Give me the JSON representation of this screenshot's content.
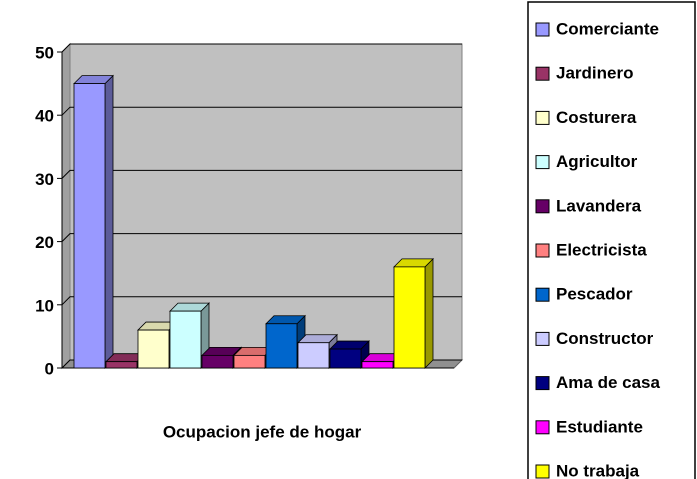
{
  "chart_data": {
    "type": "bar3d",
    "categories": [
      "Ocupacion jefe de hogar"
    ],
    "series": [
      {
        "name": "Comerciante",
        "color": "#9999ff",
        "values": [
          45
        ]
      },
      {
        "name": "Jardinero",
        "color": "#993366",
        "values": [
          1
        ]
      },
      {
        "name": "Costurera",
        "color": "#ffffcc",
        "values": [
          6
        ]
      },
      {
        "name": "Agricultor",
        "color": "#ccffff",
        "values": [
          9
        ]
      },
      {
        "name": "Lavandera",
        "color": "#660066",
        "values": [
          2
        ]
      },
      {
        "name": "Electricista",
        "color": "#ff8080",
        "values": [
          2
        ]
      },
      {
        "name": "Pescador",
        "color": "#0066cc",
        "values": [
          7
        ]
      },
      {
        "name": "Constructor",
        "color": "#ccccff",
        "values": [
          4
        ]
      },
      {
        "name": "Ama de casa",
        "color": "#000080",
        "values": [
          3
        ]
      },
      {
        "name": "Estudiante",
        "color": "#ff00ff",
        "values": [
          1
        ]
      },
      {
        "name": "No trabaja",
        "color": "#ffff00",
        "values": [
          16
        ]
      }
    ],
    "ylim": [
      0,
      50
    ],
    "yticks": [
      0,
      10,
      20,
      30,
      40,
      50
    ],
    "grid": true,
    "legend": "right"
  }
}
